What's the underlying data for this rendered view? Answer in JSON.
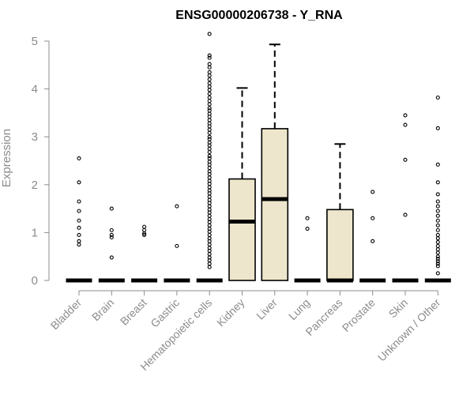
{
  "chart_data": {
    "type": "box",
    "title": "ENSG00000206738 - Y_RNA",
    "xlabel": "",
    "ylabel": "Expression",
    "ylim": [
      0,
      5.2
    ],
    "yticks": [
      0,
      1,
      2,
      3,
      4,
      5
    ],
    "grid": false,
    "legend": "none",
    "colors": {
      "box_fill": "#ede6cc",
      "box_stroke": "#000000",
      "axis": "#8c8c8c",
      "outlier": "#000000"
    },
    "categories": [
      "Bladder",
      "Brain",
      "Breast",
      "Gastric",
      "Hematopoietic cells",
      "Kidney",
      "Liver",
      "Lung",
      "Pancreas",
      "Prostate",
      "Skin",
      "Unknown / Other"
    ],
    "boxes": [
      {
        "category": "Bladder",
        "q1": 0,
        "median": 0,
        "q3": 0,
        "whisker_low": 0,
        "whisker_high": 0,
        "outliers": [
          2.55,
          2.05,
          1.65,
          1.45,
          1.25,
          1.1,
          0.95,
          0.82,
          0.75
        ]
      },
      {
        "category": "Brain",
        "q1": 0,
        "median": 0,
        "q3": 0,
        "whisker_low": 0,
        "whisker_high": 0,
        "outliers": [
          1.5,
          1.05,
          0.95,
          0.9,
          0.48
        ]
      },
      {
        "category": "Breast",
        "q1": 0,
        "median": 0,
        "q3": 0,
        "whisker_low": 0,
        "whisker_high": 0,
        "outliers": [
          1.12,
          1.05,
          0.98,
          0.95
        ]
      },
      {
        "category": "Gastric",
        "q1": 0,
        "median": 0,
        "q3": 0,
        "whisker_low": 0,
        "whisker_high": 0,
        "outliers": [
          1.55,
          0.72
        ]
      },
      {
        "category": "Hematopoietic cells",
        "q1": 0,
        "median": 0,
        "q3": 0,
        "whisker_low": 0,
        "whisker_high": 0,
        "outliers": [
          5.15,
          4.7,
          4.65,
          4.52,
          4.45,
          4.35,
          4.28,
          4.2,
          4.12,
          4.05,
          3.98,
          3.9,
          3.82,
          3.75,
          3.68,
          3.6,
          3.55,
          3.48,
          3.42,
          3.35,
          3.28,
          3.22,
          3.15,
          3.08,
          3.0,
          2.95,
          2.88,
          2.82,
          2.75,
          2.68,
          2.6,
          2.55,
          2.48,
          2.42,
          2.35,
          2.28,
          2.22,
          2.15,
          2.08,
          2.02,
          1.95,
          1.88,
          1.82,
          1.75,
          1.68,
          1.62,
          1.55,
          1.48,
          1.42,
          1.35,
          1.28,
          1.22,
          1.15,
          1.08,
          1.02,
          0.95,
          0.88,
          0.82,
          0.75,
          0.68,
          0.62,
          0.55,
          0.48,
          0.42,
          0.35,
          0.28
        ]
      },
      {
        "category": "Kidney",
        "q1": 0,
        "median": 1.23,
        "q3": 2.12,
        "whisker_low": 0,
        "whisker_high": 4.02,
        "outliers": []
      },
      {
        "category": "Liver",
        "q1": 0,
        "median": 1.7,
        "q3": 3.17,
        "whisker_low": 0,
        "whisker_high": 4.93,
        "outliers": []
      },
      {
        "category": "Lung",
        "q1": 0,
        "median": 0,
        "q3": 0,
        "whisker_low": 0,
        "whisker_high": 0,
        "outliers": [
          1.3,
          1.08
        ]
      },
      {
        "category": "Pancreas",
        "q1": 0,
        "median": 0,
        "q3": 1.48,
        "whisker_low": 0,
        "whisker_high": 2.85,
        "outliers": []
      },
      {
        "category": "Prostate",
        "q1": 0,
        "median": 0,
        "q3": 0,
        "whisker_low": 0,
        "whisker_high": 0,
        "outliers": [
          1.85,
          1.3,
          0.82
        ]
      },
      {
        "category": "Skin",
        "q1": 0,
        "median": 0,
        "q3": 0,
        "whisker_low": 0,
        "whisker_high": 0,
        "outliers": [
          3.45,
          3.25,
          2.52,
          1.37
        ]
      },
      {
        "category": "Unknown / Other",
        "q1": 0,
        "median": 0,
        "q3": 0,
        "whisker_low": 0,
        "whisker_high": 0,
        "outliers": [
          3.82,
          3.18,
          2.42,
          2.05,
          1.8,
          1.65,
          1.55,
          1.45,
          1.35,
          1.25,
          1.15,
          1.05,
          0.95,
          0.88,
          0.8,
          0.72,
          0.65,
          0.58,
          0.5,
          0.45,
          0.4,
          0.35,
          0.3,
          0.15
        ]
      }
    ]
  }
}
